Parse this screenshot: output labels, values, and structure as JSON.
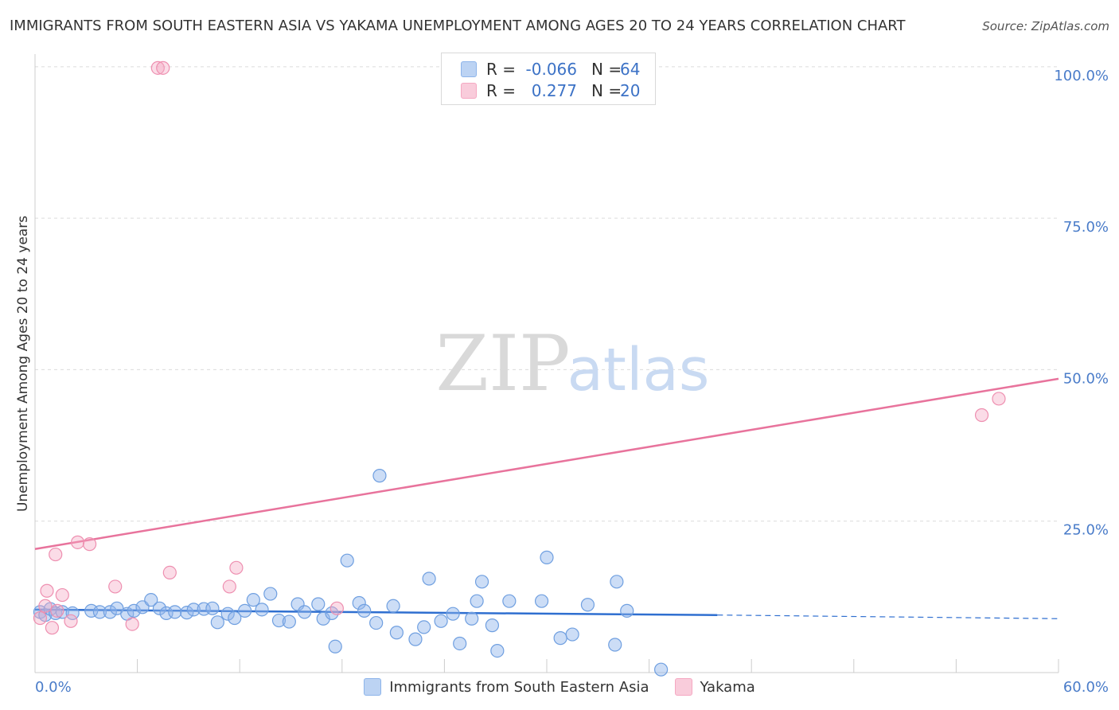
{
  "title": "IMMIGRANTS FROM SOUTH EASTERN ASIA VS YAKAMA UNEMPLOYMENT AMONG AGES 20 TO 24 YEARS CORRELATION CHART",
  "source": "Source: ZipAtlas.com",
  "watermark": {
    "zip": "ZIP",
    "atlas": "atlas"
  },
  "colors": {
    "blue": "#8db4ea",
    "blue_stroke": "#6f9fe0",
    "pink": "#f5a8c2",
    "pink_stroke": "#ee8fb0",
    "blue_line": "#2f6fd0",
    "pink_line": "#e8739c",
    "tick_text": "#4a7cc9"
  },
  "legend": [
    {
      "swatch": "blue",
      "r_label": "R =",
      "r_value": "-0.066",
      "n_label": "N =",
      "n_value": "64"
    },
    {
      "swatch": "pink",
      "r_label": "R =",
      "r_value": "0.277",
      "n_label": "N =",
      "n_value": "20"
    }
  ],
  "bottom_legend": [
    {
      "swatch": "blue",
      "label": "Immigrants from South Eastern Asia"
    },
    {
      "swatch": "pink",
      "label": "Yakama"
    }
  ],
  "chart_data": {
    "type": "scatter",
    "title": "IMMIGRANTS FROM SOUTH EASTERN ASIA VS YAKAMA UNEMPLOYMENT AMONG AGES 20 TO 24 YEARS CORRELATION CHART",
    "xlabel": "",
    "ylabel": "Unemployment Among Ages 20 to 24 years",
    "xlim": [
      0,
      60
    ],
    "ylim": [
      0,
      100
    ],
    "x_tick_labels": [
      "0.0%",
      "60.0%"
    ],
    "y_ticks": [
      25,
      50,
      75,
      100
    ],
    "y_tick_labels": [
      "25.0%",
      "50.0%",
      "75.0%",
      "100.0%"
    ],
    "series": [
      {
        "name": "Immigrants from South Eastern Asia",
        "color": "blue",
        "points": [
          [
            0.3,
            10
          ],
          [
            0.6,
            9.5
          ],
          [
            0.9,
            10.5
          ],
          [
            1.2,
            9.8
          ],
          [
            1.6,
            10
          ],
          [
            2.2,
            9.8
          ],
          [
            3.3,
            10.2
          ],
          [
            3.8,
            10
          ],
          [
            4.4,
            10
          ],
          [
            4.8,
            10.6
          ],
          [
            5.4,
            9.7
          ],
          [
            5.8,
            10.2
          ],
          [
            6.3,
            10.8
          ],
          [
            6.8,
            12
          ],
          [
            7.3,
            10.6
          ],
          [
            7.7,
            9.8
          ],
          [
            8.2,
            10
          ],
          [
            8.9,
            9.9
          ],
          [
            9.3,
            10.4
          ],
          [
            9.9,
            10.5
          ],
          [
            10.4,
            10.6
          ],
          [
            10.7,
            8.3
          ],
          [
            11.3,
            9.7
          ],
          [
            11.7,
            9
          ],
          [
            12.3,
            10.2
          ],
          [
            12.8,
            12
          ],
          [
            13.3,
            10.4
          ],
          [
            13.8,
            13
          ],
          [
            14.3,
            8.6
          ],
          [
            14.9,
            8.4
          ],
          [
            15.4,
            11.3
          ],
          [
            15.8,
            10
          ],
          [
            16.6,
            11.3
          ],
          [
            16.9,
            8.9
          ],
          [
            17.4,
            9.8
          ],
          [
            17.6,
            4.3
          ],
          [
            18.3,
            18.5
          ],
          [
            19.0,
            11.5
          ],
          [
            19.3,
            10.2
          ],
          [
            20.0,
            8.2
          ],
          [
            20.2,
            32.5
          ],
          [
            21.0,
            11
          ],
          [
            21.2,
            6.6
          ],
          [
            22.3,
            5.5
          ],
          [
            22.8,
            7.5
          ],
          [
            23.1,
            15.5
          ],
          [
            23.8,
            8.5
          ],
          [
            24.5,
            9.7
          ],
          [
            24.9,
            4.8
          ],
          [
            25.6,
            8.9
          ],
          [
            25.9,
            11.8
          ],
          [
            26.2,
            15
          ],
          [
            26.8,
            7.8
          ],
          [
            27.1,
            3.6
          ],
          [
            27.8,
            11.8
          ],
          [
            29.7,
            11.8
          ],
          [
            30.0,
            19
          ],
          [
            30.8,
            5.7
          ],
          [
            31.5,
            6.3
          ],
          [
            32.4,
            11.2
          ],
          [
            34.0,
            4.6
          ],
          [
            34.1,
            15
          ],
          [
            34.7,
            10.2
          ],
          [
            36.7,
            0.5
          ]
        ]
      },
      {
        "name": "Yakama",
        "color": "pink",
        "points": [
          [
            0.3,
            9
          ],
          [
            0.6,
            11
          ],
          [
            0.7,
            13.5
          ],
          [
            1.0,
            7.4
          ],
          [
            1.2,
            19.5
          ],
          [
            1.6,
            12.8
          ],
          [
            2.1,
            8.5
          ],
          [
            2.5,
            21.5
          ],
          [
            3.2,
            21.2
          ],
          [
            4.7,
            14.2
          ],
          [
            5.7,
            8
          ],
          [
            7.2,
            99.8
          ],
          [
            7.5,
            99.8
          ],
          [
            7.9,
            16.5
          ],
          [
            11.4,
            14.2
          ],
          [
            11.8,
            17.3
          ],
          [
            17.7,
            10.6
          ],
          [
            55.5,
            42.5
          ],
          [
            56.5,
            45.2
          ],
          [
            1.3,
            10.2
          ]
        ]
      }
    ],
    "trend_lines": [
      {
        "series": "Immigrants from South Eastern Asia",
        "x": [
          0,
          40
        ],
        "y": [
          10.4,
          9.5
        ],
        "dashed_extension_x": [
          40,
          60
        ],
        "dashed_extension_y": [
          9.5,
          8.9
        ]
      },
      {
        "series": "Yakama",
        "x": [
          0,
          60
        ],
        "y": [
          20.4,
          48.5
        ]
      }
    ]
  }
}
